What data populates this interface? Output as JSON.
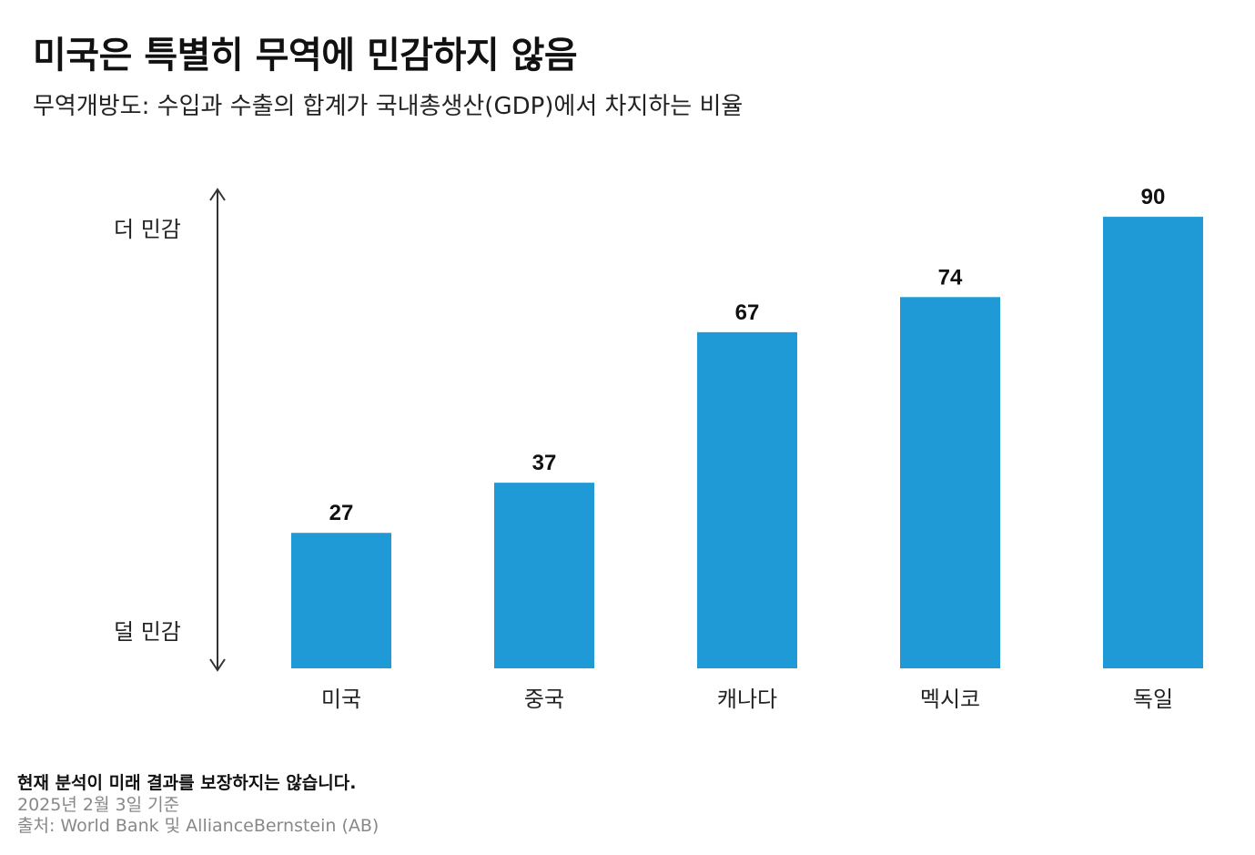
{
  "header": {
    "title": "미국은 특별히 무역에 민감하지 않음",
    "subtitle": "무역개방도: 수입과 수출의 합계가 국내총생산(GDP)에서 차지하는 비율"
  },
  "sensitivity_axis": {
    "top_label": "더 민감",
    "bottom_label": "덜 민감"
  },
  "chart_data": {
    "type": "bar",
    "categories": [
      "미국",
      "중국",
      "캐나다",
      "멕시코",
      "독일"
    ],
    "values": [
      27,
      37,
      67,
      74,
      90
    ],
    "data_labels": [
      "27",
      "37",
      "67",
      "74",
      "90"
    ],
    "title": "미국은 특별히 무역에 민감하지 않음",
    "subtitle": "무역개방도: 수입과 수출의 합계가 국내총생산(GDP)에서 차지하는 비율",
    "xlabel": "",
    "ylabel": "",
    "ylim": [
      0,
      100
    ],
    "grid": false,
    "bar_color": "#1f9ad6"
  },
  "footer": {
    "disclaimer": "현재 분석이 미래 결과를 보장하지는 않습니다.",
    "as_of": "2025년 2월 3일 기준",
    "source": "출처: World Bank 및 AllianceBernstein (AB)"
  },
  "colors": {
    "bar": "#1f9ad6",
    "axis": "#333333",
    "footer_muted": "#888888"
  }
}
